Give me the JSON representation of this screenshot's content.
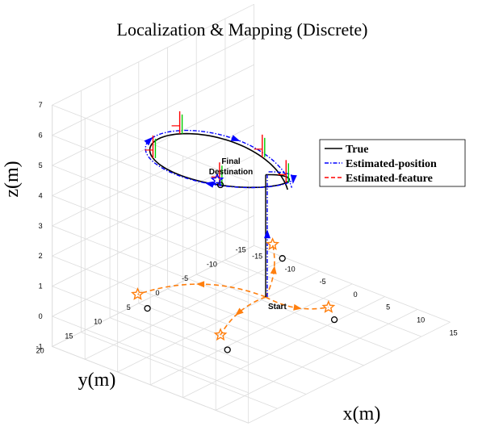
{
  "chart_data": {
    "type": "3d-line",
    "title": "Localization & Mapping (Discrete)",
    "xlabel": "x(m)",
    "ylabel": "y(m)",
    "zlabel": "z(m)",
    "xlim": [
      -15,
      15
    ],
    "ylim": [
      -15,
      20
    ],
    "zlim": [
      -1,
      7
    ],
    "x_ticks": [
      -15,
      -10,
      -5,
      0,
      5,
      10,
      15
    ],
    "y_ticks": [
      -15,
      -10,
      -5,
      0,
      5,
      10,
      15,
      20
    ],
    "z_ticks": [
      -1,
      0,
      1,
      2,
      3,
      4,
      5,
      6,
      7
    ],
    "x_tick_labels": [
      "-15",
      "-10",
      "-5",
      "0",
      "5",
      "10",
      "15"
    ],
    "y_tick_labels": [
      "-15",
      "-10",
      "-5",
      "0",
      "5",
      "10",
      "15",
      "20"
    ],
    "z_tick_labels": [
      "-1",
      "0",
      "1",
      "2",
      "3",
      "4",
      "5",
      "6",
      "7"
    ],
    "grid": true,
    "legend": {
      "placement": "right",
      "entries": [
        {
          "label": "True",
          "color": "#000000",
          "style": "solid"
        },
        {
          "label": "Estimated-position",
          "color": "#0000ff",
          "style": "dash-dot"
        },
        {
          "label": "Estimated-feature",
          "color": "#ff0000",
          "style": "dashed"
        }
      ]
    },
    "annotations": [
      "Start",
      "Final Destination"
    ],
    "start_point": {
      "x": 0,
      "y": 0,
      "z": 0
    },
    "final_destination": {
      "x": -3,
      "y": 5,
      "z": 4.1
    },
    "trajectory_true": {
      "ascent": [
        [
          0,
          0,
          0
        ],
        [
          0,
          0,
          4.05
        ]
      ],
      "circle": {
        "center_x": 0,
        "center_y": 8,
        "radius": 8,
        "z_start": 4.05,
        "z_end": 4.1,
        "turns": 1.1
      }
    },
    "features": {
      "true": [
        [
          -10,
          10,
          0
        ],
        [
          8,
          -2,
          0
        ],
        [
          4,
          12,
          0
        ],
        [
          -7,
          -10,
          0
        ]
      ],
      "estimated": [
        [
          -10.4,
          10.4,
          0.2
        ],
        [
          8.2,
          -1.6,
          0.2
        ],
        [
          4.2,
          12.6,
          0.3
        ],
        [
          -7.4,
          -9.6,
          0.2
        ]
      ],
      "feature_color": "#ff7f0e"
    },
    "pose_frame_colors": {
      "x_axis": "#ff0000",
      "y_axis": "#00cc00"
    }
  }
}
